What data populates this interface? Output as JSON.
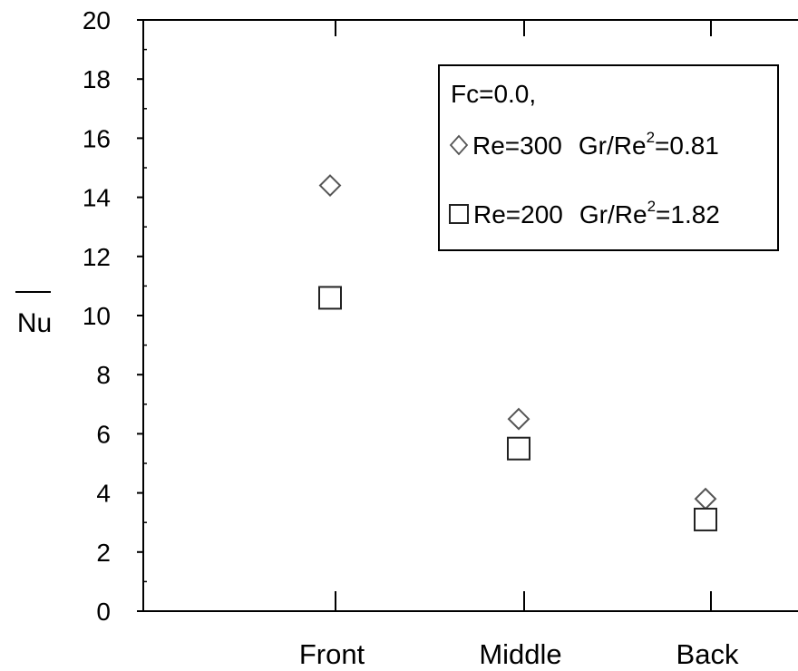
{
  "chart_data": {
    "type": "scatter",
    "categories": [
      "Front",
      "Middle",
      "Back"
    ],
    "ylabel": "Nu",
    "ylim": [
      0,
      20
    ],
    "yticks": [
      "0",
      "2",
      "4",
      "6",
      "8",
      "10",
      "12",
      "14",
      "16",
      "18",
      "20"
    ],
    "grid": false,
    "legend": {
      "placement": "top-right",
      "header": "Fc=0.0,"
    },
    "series": [
      {
        "marker": "diamond",
        "re_label": "Re=300",
        "gr_label": "Gr/Re",
        "gr_sup": "2",
        "gr_value": "=0.81",
        "values": [
          14.4,
          6.5,
          3.8
        ]
      },
      {
        "marker": "square",
        "re_label": "Re=200",
        "gr_label": "Gr/Re",
        "gr_sup": "2",
        "gr_value": "=1.82",
        "values": [
          10.6,
          5.5,
          3.1
        ]
      }
    ]
  }
}
